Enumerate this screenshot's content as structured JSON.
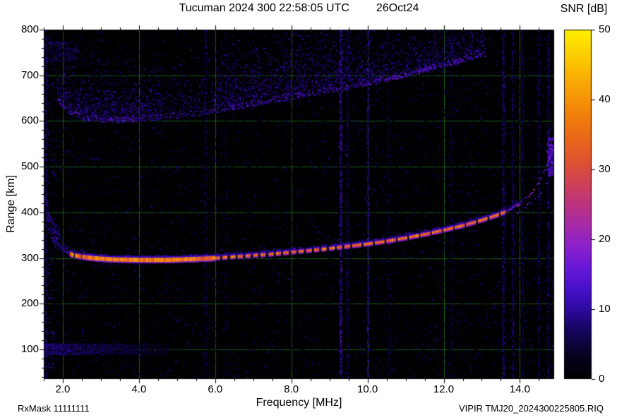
{
  "title": {
    "station_time": "Tucuman 2024 300 22:58:05 UTC",
    "date": "26Oct24"
  },
  "colorbar": {
    "label": "SNR [dB]",
    "min": 0,
    "max": 50,
    "ticks": [
      0,
      10,
      20,
      30,
      40,
      50
    ]
  },
  "axes": {
    "x": {
      "label": "Frequency [MHz]",
      "min": 1.5,
      "max": 14.9,
      "minor_step": 0.5,
      "ticks": [
        {
          "v": 2,
          "label": "2.0"
        },
        {
          "v": 4,
          "label": "4.0"
        },
        {
          "v": 6,
          "label": "6.0"
        },
        {
          "v": 8,
          "label": "8.0"
        },
        {
          "v": 10,
          "label": "10.0"
        },
        {
          "v": 12,
          "label": "12.0"
        },
        {
          "v": 14,
          "label": "14.0"
        }
      ]
    },
    "y": {
      "label": "Range [km]",
      "min": 35,
      "max": 800,
      "minor_step": 20,
      "ticks": [
        {
          "v": 800,
          "label": "800"
        },
        {
          "v": 700,
          "label": "700"
        },
        {
          "v": 600,
          "label": "600"
        },
        {
          "v": 500,
          "label": "500"
        },
        {
          "v": 400,
          "label": "400"
        },
        {
          "v": 300,
          "label": "300"
        },
        {
          "v": 200,
          "label": "200"
        },
        {
          "v": 100,
          "label": "100"
        }
      ]
    }
  },
  "footer": {
    "rx_mask": "RxMask 11111111",
    "file": "VIPIR  TMJ20_2024300225805.RIQ"
  },
  "chart_data": {
    "type": "heatmap",
    "title": "Tucuman 2024 300 22:58:05 UTC  26Oct24",
    "xlabel": "Frequency [MHz]",
    "ylabel": "Range [km]",
    "zlabel": "SNR [dB]",
    "xlim": [
      1.5,
      14.9
    ],
    "ylim": [
      35,
      800
    ],
    "zlim": [
      0,
      50
    ],
    "grid": true,
    "grid_color": "#1d5f1d",
    "background": "#000000",
    "palette_stops": [
      [
        0,
        "#000000"
      ],
      [
        0.06,
        "#06021a"
      ],
      [
        0.14,
        "#15055e"
      ],
      [
        0.2,
        "#2c0aa0"
      ],
      [
        0.26,
        "#4a10cc"
      ],
      [
        0.32,
        "#6a18d8"
      ],
      [
        0.38,
        "#8c20cc"
      ],
      [
        0.44,
        "#a62aaa"
      ],
      [
        0.5,
        "#bc3380"
      ],
      [
        0.56,
        "#cf4156"
      ],
      [
        0.62,
        "#de5232"
      ],
      [
        0.7,
        "#ec6c16"
      ],
      [
        0.78,
        "#f48a08"
      ],
      [
        0.86,
        "#f9ad04"
      ],
      [
        0.93,
        "#fdcf02"
      ],
      [
        1,
        "#ffef00"
      ]
    ],
    "noise_floor_db": 4,
    "echo_traces": {
      "f_layer": {
        "description": "Main F-region echo trace (frequency MHz, virtual height km), bright SNR ~30-42 dB core",
        "points": [
          [
            1.52,
            440
          ],
          [
            1.58,
            395
          ],
          [
            1.65,
            362
          ],
          [
            1.75,
            340
          ],
          [
            1.9,
            323
          ],
          [
            2.1,
            311
          ],
          [
            2.4,
            304
          ],
          [
            2.8,
            300
          ],
          [
            3.3,
            297
          ],
          [
            4.0,
            296
          ],
          [
            4.8,
            296
          ],
          [
            5.5,
            298
          ],
          [
            6.0,
            300
          ],
          [
            6.5,
            303
          ],
          [
            7.0,
            306
          ],
          [
            7.5,
            309
          ],
          [
            8.0,
            313
          ],
          [
            8.5,
            317
          ],
          [
            9.0,
            321
          ],
          [
            9.5,
            326
          ],
          [
            10.0,
            331
          ],
          [
            10.5,
            337
          ],
          [
            11.0,
            344
          ],
          [
            11.5,
            352
          ],
          [
            12.0,
            361
          ],
          [
            12.5,
            371
          ],
          [
            13.0,
            383
          ],
          [
            13.4,
            394
          ],
          [
            13.7,
            404
          ],
          [
            14.0,
            419
          ],
          [
            14.2,
            433
          ],
          [
            14.4,
            452
          ],
          [
            14.55,
            472
          ],
          [
            14.7,
            500
          ],
          [
            14.8,
            523
          ],
          [
            14.88,
            548
          ]
        ],
        "core_snr_db": 38,
        "bright_range_mhz": [
          2.6,
          13.6
        ]
      },
      "x_mode": {
        "description": "Second (X-mode) dotted branch near critical frequency",
        "points": [
          [
            13.95,
            398
          ],
          [
            14.15,
            410
          ],
          [
            14.35,
            425
          ],
          [
            14.55,
            443
          ],
          [
            14.7,
            462
          ],
          [
            14.82,
            485
          ],
          [
            14.88,
            505
          ]
        ],
        "snr_db": 16
      },
      "second_hop": {
        "description": "Diffuse second-hop / spread echo region, lower edge (MHz, km)",
        "lower_edge": [
          [
            1.9,
            640
          ],
          [
            2.2,
            612
          ],
          [
            2.6,
            600
          ],
          [
            3.5,
            596
          ],
          [
            4.5,
            601
          ],
          [
            5.5,
            611
          ],
          [
            6.5,
            624
          ],
          [
            7.5,
            639
          ],
          [
            8.5,
            654
          ],
          [
            9.5,
            669
          ],
          [
            10.5,
            686
          ],
          [
            11.5,
            706
          ],
          [
            12.3,
            722
          ],
          [
            12.9,
            740
          ]
        ],
        "spread_km": 130,
        "snr_db": 12
      },
      "e_region_band": {
        "description": "Low-altitude speckle band near 100 km",
        "f_range": [
          1.5,
          4.8
        ],
        "h_range": [
          88,
          112
        ],
        "snr_db": 10
      },
      "slant_feature": {
        "description": "Faint slanted dotted feature near 510-535 km at low frequency",
        "points": [
          [
            2.0,
            535
          ],
          [
            2.7,
            520
          ],
          [
            3.6,
            506
          ]
        ],
        "snr_db": 8
      }
    },
    "rfi_lines": [
      {
        "f": 1.56,
        "snr_db": 9
      },
      {
        "f": 5.75,
        "snr_db": 7
      },
      {
        "f": 6.3,
        "snr_db": 5
      },
      {
        "f": 9.3,
        "snr_db": 15
      },
      {
        "f": 9.48,
        "snr_db": 8
      },
      {
        "f": 10.02,
        "snr_db": 11
      },
      {
        "f": 10.55,
        "snr_db": 6
      },
      {
        "f": 12.2,
        "snr_db": 6
      },
      {
        "f": 13.57,
        "snr_db": 11
      },
      {
        "f": 13.82,
        "snr_db": 9
      },
      {
        "f": 14.07,
        "snr_db": 8
      },
      {
        "f": 14.5,
        "snr_db": 8
      },
      {
        "f": 14.75,
        "snr_db": 9
      }
    ]
  }
}
